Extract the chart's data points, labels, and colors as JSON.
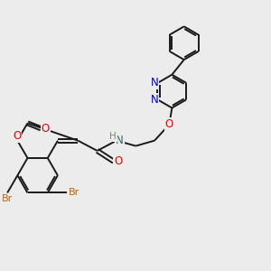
{
  "bg_color": "#ececec",
  "bond_color": "#1a1a1a",
  "bond_width": 1.4,
  "N_color": "#0000ee",
  "O_color": "#ee0000",
  "Br_color": "#bb6600",
  "H_color": "#778877",
  "font_size": 8.5,
  "figsize": [
    3.0,
    3.0
  ],
  "dpi": 100,
  "xlim": [
    0,
    10
  ],
  "ylim": [
    0,
    10
  ]
}
